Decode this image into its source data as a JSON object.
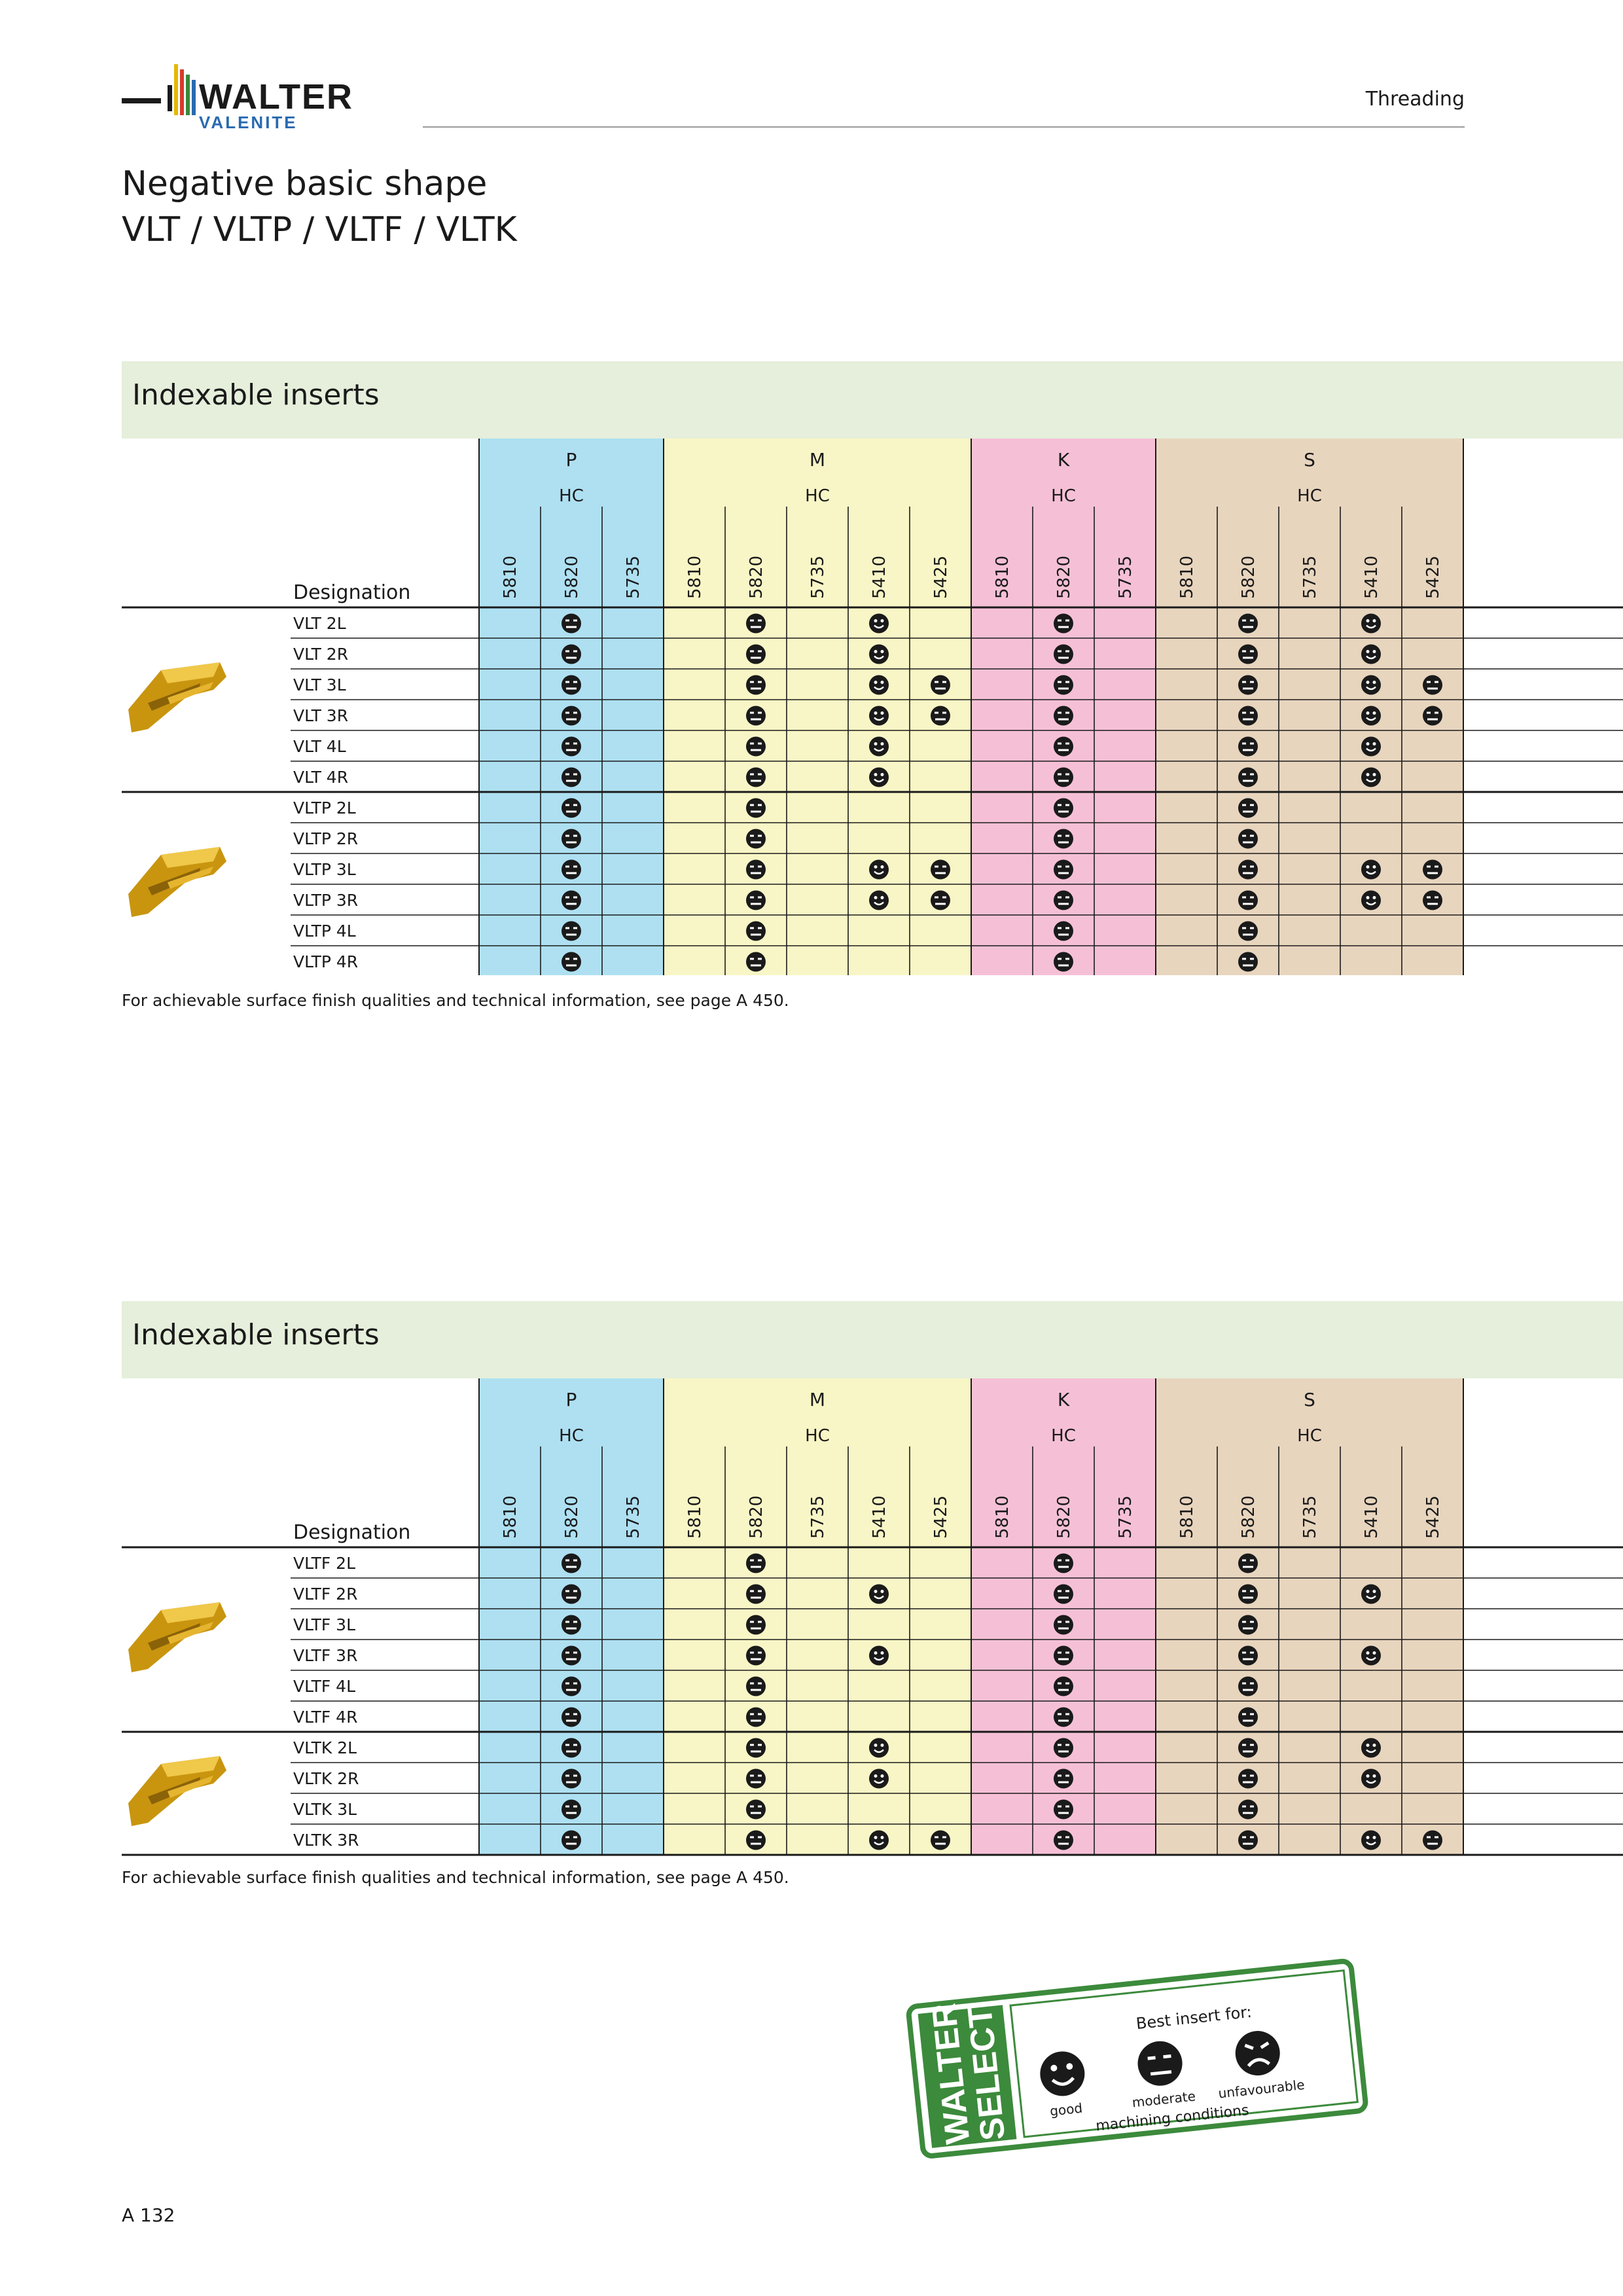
{
  "header": {
    "brand_top": "WALTER",
    "brand_bottom": "VALENITE",
    "section": "Threading",
    "title_line1": "Negative basic shape",
    "title_line2": "VLT / VLTP / VLTF / VLTK"
  },
  "colors": {
    "P": "#aee0f2",
    "M": "#f8f6c6",
    "K": "#f5c0d6",
    "S": "#e8d5be",
    "banner": "#e5efdb",
    "walter_green": "#3c8a3c"
  },
  "groups": [
    {
      "name": "P",
      "sub": "HC",
      "grades": [
        "5810",
        "5820",
        "5735"
      ]
    },
    {
      "name": "M",
      "sub": "HC",
      "grades": [
        "5810",
        "5820",
        "5735",
        "5410",
        "5425"
      ]
    },
    {
      "name": "K",
      "sub": "HC",
      "grades": [
        "5810",
        "5820",
        "5735"
      ]
    },
    {
      "name": "S",
      "sub": "HC",
      "grades": [
        "5810",
        "5820",
        "5735",
        "5410",
        "5425"
      ]
    }
  ],
  "tables": [
    {
      "title": "Indexable inserts",
      "designation_label": "Designation",
      "footnote": "For achievable surface finish qualities and technical information, see page A 450.",
      "families": [
        {
          "icon": "insert-vlt-icon",
          "rows": [
            {
              "name": "VLT 2L",
              "marks": [
                "",
                "m",
                "",
                "",
                "m",
                "",
                "g",
                "",
                "",
                "m",
                "",
                "",
                "m",
                "",
                "g",
                ""
              ]
            },
            {
              "name": "VLT 2R",
              "marks": [
                "",
                "m",
                "",
                "",
                "m",
                "",
                "g",
                "",
                "",
                "m",
                "",
                "",
                "m",
                "",
                "g",
                ""
              ]
            },
            {
              "name": "VLT 3L",
              "marks": [
                "",
                "m",
                "",
                "",
                "m",
                "",
                "g",
                "m",
                "",
                "m",
                "",
                "",
                "m",
                "",
                "g",
                "m"
              ]
            },
            {
              "name": "VLT 3R",
              "marks": [
                "",
                "m",
                "",
                "",
                "m",
                "",
                "g",
                "m",
                "",
                "m",
                "",
                "",
                "m",
                "",
                "g",
                "m"
              ]
            },
            {
              "name": "VLT 4L",
              "marks": [
                "",
                "m",
                "",
                "",
                "m",
                "",
                "g",
                "",
                "",
                "m",
                "",
                "",
                "m",
                "",
                "g",
                ""
              ]
            },
            {
              "name": "VLT 4R",
              "marks": [
                "",
                "m",
                "",
                "",
                "m",
                "",
                "g",
                "",
                "",
                "m",
                "",
                "",
                "m",
                "",
                "g",
                ""
              ]
            }
          ]
        },
        {
          "icon": "insert-vltp-icon",
          "rows": [
            {
              "name": "VLTP 2L",
              "marks": [
                "",
                "m",
                "",
                "",
                "m",
                "",
                "",
                "",
                "",
                "m",
                "",
                "",
                "m",
                "",
                "",
                ""
              ]
            },
            {
              "name": "VLTP 2R",
              "marks": [
                "",
                "m",
                "",
                "",
                "m",
                "",
                "",
                "",
                "",
                "m",
                "",
                "",
                "m",
                "",
                "",
                ""
              ]
            },
            {
              "name": "VLTP 3L",
              "marks": [
                "",
                "m",
                "",
                "",
                "m",
                "",
                "g",
                "m",
                "",
                "m",
                "",
                "",
                "m",
                "",
                "g",
                "m"
              ]
            },
            {
              "name": "VLTP 3R",
              "marks": [
                "",
                "m",
                "",
                "",
                "m",
                "",
                "g",
                "m",
                "",
                "m",
                "",
                "",
                "m",
                "",
                "g",
                "m"
              ]
            },
            {
              "name": "VLTP 4L",
              "marks": [
                "",
                "m",
                "",
                "",
                "m",
                "",
                "",
                "",
                "",
                "m",
                "",
                "",
                "m",
                "",
                "",
                ""
              ]
            },
            {
              "name": "VLTP 4R",
              "marks": [
                "",
                "m",
                "",
                "",
                "m",
                "",
                "",
                "",
                "",
                "m",
                "",
                "",
                "m",
                "",
                "",
                ""
              ]
            }
          ]
        }
      ]
    },
    {
      "title": "Indexable inserts",
      "designation_label": "Designation",
      "footnote": "For achievable surface finish qualities and technical information, see page A 450.",
      "families": [
        {
          "icon": "insert-vltf-icon",
          "rows": [
            {
              "name": "VLTF 2L",
              "marks": [
                "",
                "m",
                "",
                "",
                "m",
                "",
                "",
                "",
                "",
                "m",
                "",
                "",
                "m",
                "",
                "",
                ""
              ]
            },
            {
              "name": "VLTF 2R",
              "marks": [
                "",
                "m",
                "",
                "",
                "m",
                "",
                "g",
                "",
                "",
                "m",
                "",
                "",
                "m",
                "",
                "g",
                ""
              ]
            },
            {
              "name": "VLTF 3L",
              "marks": [
                "",
                "m",
                "",
                "",
                "m",
                "",
                "",
                "",
                "",
                "m",
                "",
                "",
                "m",
                "",
                "",
                ""
              ]
            },
            {
              "name": "VLTF 3R",
              "marks": [
                "",
                "m",
                "",
                "",
                "m",
                "",
                "g",
                "",
                "",
                "m",
                "",
                "",
                "m",
                "",
                "g",
                ""
              ]
            },
            {
              "name": "VLTF 4L",
              "marks": [
                "",
                "m",
                "",
                "",
                "m",
                "",
                "",
                "",
                "",
                "m",
                "",
                "",
                "m",
                "",
                "",
                ""
              ]
            },
            {
              "name": "VLTF 4R",
              "marks": [
                "",
                "m",
                "",
                "",
                "m",
                "",
                "",
                "",
                "",
                "m",
                "",
                "",
                "m",
                "",
                "",
                ""
              ]
            }
          ]
        },
        {
          "icon": "insert-vltk-icon",
          "rows": [
            {
              "name": "VLTK 2L",
              "marks": [
                "",
                "m",
                "",
                "",
                "m",
                "",
                "g",
                "",
                "",
                "m",
                "",
                "",
                "m",
                "",
                "g",
                ""
              ]
            },
            {
              "name": "VLTK 2R",
              "marks": [
                "",
                "m",
                "",
                "",
                "m",
                "",
                "g",
                "",
                "",
                "m",
                "",
                "",
                "m",
                "",
                "g",
                ""
              ]
            },
            {
              "name": "VLTK 3L",
              "marks": [
                "",
                "m",
                "",
                "",
                "m",
                "",
                "",
                "",
                "",
                "m",
                "",
                "",
                "m",
                "",
                "",
                ""
              ]
            },
            {
              "name": "VLTK 3R",
              "marks": [
                "",
                "m",
                "",
                "",
                "m",
                "",
                "g",
                "m",
                "",
                "m",
                "",
                "",
                "m",
                "",
                "g",
                "m"
              ]
            }
          ]
        }
      ]
    }
  ],
  "legend": {
    "stamp_line1": "WALTER",
    "stamp_line2": "SELECT",
    "heading": "Best insert for:",
    "good": "good",
    "moderate": "moderate",
    "unfavourable": "unfavourable",
    "footer": "machining conditions"
  },
  "page_number": "A 132"
}
